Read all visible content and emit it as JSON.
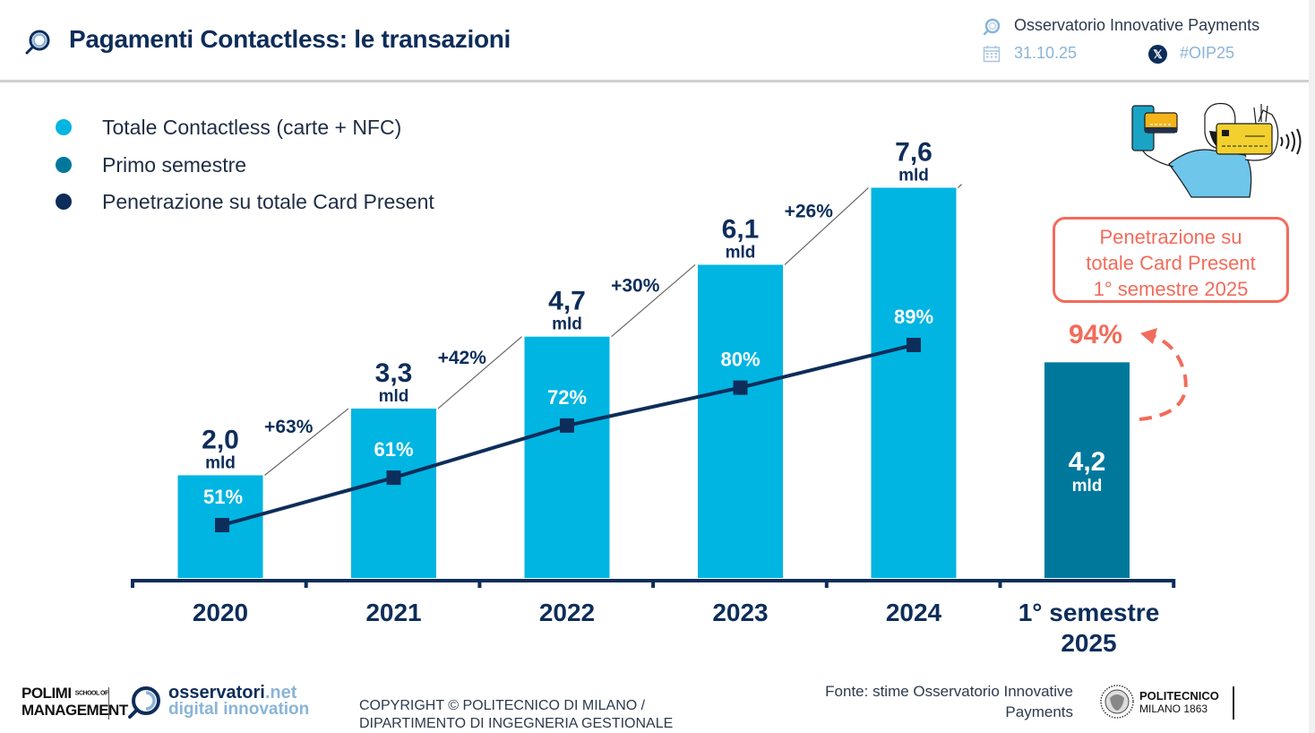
{
  "header": {
    "title": "Pagamenti Contactless: le transazioni",
    "observatory": "Osservatorio Innovative Payments",
    "date": "31.10.25",
    "hashtag": "#OIP25",
    "icons": [
      "magnifier-logo-icon",
      "calendar-icon",
      "x-social-icon"
    ]
  },
  "legend": [
    {
      "label": "Totale Contactless (carte + NFC)",
      "color": "#00b5e2"
    },
    {
      "label": "Primo semestre",
      "color": "#00789c"
    },
    {
      "label": "Penetrazione su totale Card Present",
      "color": "#0d2d5a"
    }
  ],
  "callout": {
    "lines": [
      "Penetrazione su",
      "totale Card Present",
      "1° semestre 2025"
    ],
    "value": "94%",
    "color": "#f26b5b"
  },
  "chart_data": {
    "type": "bar",
    "title": "Pagamenti Contactless: le transazioni",
    "xlabel": "",
    "ylabel": "",
    "unit": "mld",
    "categories": [
      "2020",
      "2021",
      "2022",
      "2023",
      "2024",
      "1° semestre 2025"
    ],
    "category_lines": [
      [
        "2020"
      ],
      [
        "2021"
      ],
      [
        "2022"
      ],
      [
        "2023"
      ],
      [
        "2024"
      ],
      [
        "1° semestre",
        "2025"
      ]
    ],
    "series": [
      {
        "name": "Totale Contactless (carte + NFC)",
        "type": "bar",
        "color": "#00b5e2",
        "values": [
          2.0,
          3.3,
          4.7,
          6.1,
          7.6,
          null
        ],
        "labels": [
          "2,0",
          "3,3",
          "4,7",
          "6,1",
          "7,6",
          null
        ]
      },
      {
        "name": "Primo semestre",
        "type": "bar",
        "color": "#00789c",
        "values": [
          null,
          null,
          null,
          null,
          null,
          4.2
        ],
        "labels": [
          null,
          null,
          null,
          null,
          null,
          "4,2"
        ]
      },
      {
        "name": "Penetrazione su totale Card Present",
        "type": "line",
        "color": "#0d2d5a",
        "values": [
          51,
          61,
          72,
          80,
          89,
          94
        ],
        "labels": [
          "51%",
          "61%",
          "72%",
          "80%",
          "89%",
          "94%"
        ]
      }
    ],
    "growth": [
      {
        "from": "2020",
        "to": "2021",
        "label": "+63%"
      },
      {
        "from": "2021",
        "to": "2022",
        "label": "+42%"
      },
      {
        "from": "2022",
        "to": "2023",
        "label": "+30%"
      },
      {
        "from": "2023",
        "to": "2024",
        "label": "+26%"
      }
    ],
    "ylim": [
      0,
      8
    ],
    "grid": false,
    "legend_position": "top-left"
  },
  "footer": {
    "polimi_line1": "POLIMI",
    "polimi_school": "SCHOOL OF",
    "polimi_line2": "MANAGEMENT",
    "osservatori_name": "osservatori",
    "osservatori_tld": ".net",
    "osservatori_sub": "digital innovation",
    "copyright_line1": "COPYRIGHT © POLITECNICO DI MILANO /",
    "copyright_line2": "DIPARTIMENTO DI INGEGNERIA GESTIONALE",
    "source_line1": "Fonte: stime Osservatorio Innovative",
    "source_line2": "Payments",
    "polito_line1": "POLITECNICO",
    "polito_line2": "MILANO 1863"
  }
}
